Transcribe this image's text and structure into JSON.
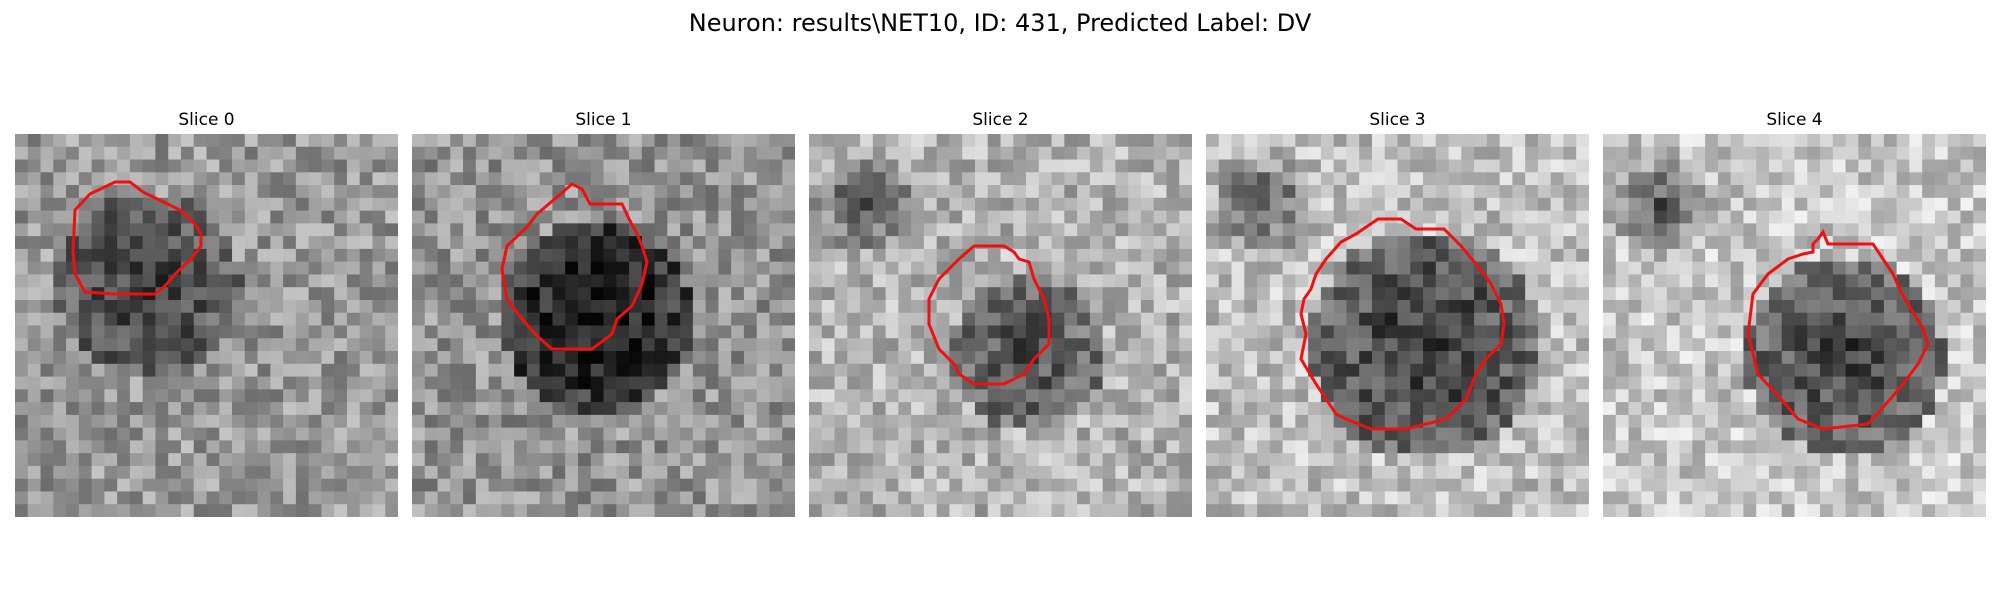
{
  "figure": {
    "title": "Neuron: results\\NET10, ID: 431, Predicted Label: DV",
    "contour_color": "#ee1111",
    "colormap": "gray"
  },
  "slices": [
    {
      "label": "Slice 0",
      "dark_center": [
        0.35,
        0.4
      ],
      "dark_radius": 0.24,
      "dark_strength": 0.35,
      "brightness": 0.6
    },
    {
      "label": "Slice 1",
      "dark_center": [
        0.48,
        0.48
      ],
      "dark_radius": 0.25,
      "dark_strength": 0.55,
      "brightness": 0.58
    },
    {
      "label": "Slice 2",
      "dark_center": [
        0.57,
        0.57
      ],
      "dark_radius": 0.2,
      "dark_strength": 0.4,
      "brightness": 0.7
    },
    {
      "label": "Slice 3",
      "dark_center": [
        0.57,
        0.55
      ],
      "dark_radius": 0.3,
      "dark_strength": 0.55,
      "brightness": 0.75
    },
    {
      "label": "Slice 4",
      "dark_center": [
        0.63,
        0.58
      ],
      "dark_radius": 0.26,
      "dark_strength": 0.55,
      "brightness": 0.78
    }
  ]
}
